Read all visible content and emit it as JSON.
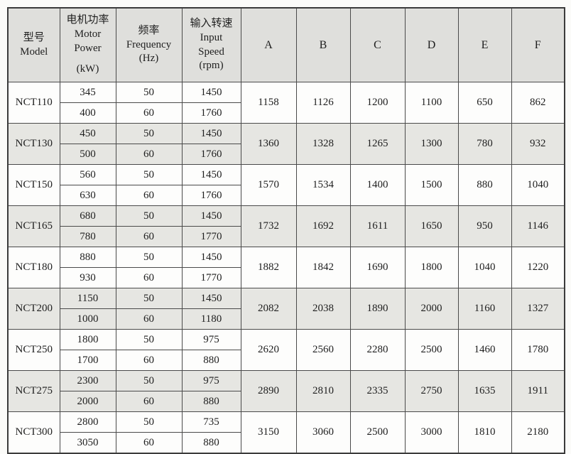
{
  "colors": {
    "page_background": "#fbfbf9",
    "header_background": "#dfdfdc",
    "shaded_row_background": "#e6e6e2",
    "border": "#4a4a4a",
    "text": "#1e1e1e"
  },
  "table": {
    "header": {
      "model_cn": "型号",
      "model_en": "Model",
      "power_cn": "电机功率",
      "power_en_1": "Motor",
      "power_en_2": "Power",
      "power_unit": "(kW)",
      "freq_cn": "频率",
      "freq_en": "Frequency",
      "freq_unit": "(Hz)",
      "speed_cn": "输入转速",
      "speed_en_1": "Input",
      "speed_en_2": "Speed",
      "speed_unit": "(rpm)",
      "col_a": "A",
      "col_b": "B",
      "col_c": "C",
      "col_d": "D",
      "col_e": "E",
      "col_f": "F"
    },
    "groups": [
      {
        "model": "NCT110",
        "variants": [
          {
            "power": "345",
            "freq": "50",
            "speed": "1450"
          },
          {
            "power": "400",
            "freq": "60",
            "speed": "1760"
          }
        ],
        "dims": [
          "1158",
          "1126",
          "1200",
          "1100",
          "650",
          "862"
        ]
      },
      {
        "model": "NCT130",
        "variants": [
          {
            "power": "450",
            "freq": "50",
            "speed": "1450"
          },
          {
            "power": "500",
            "freq": "60",
            "speed": "1760"
          }
        ],
        "dims": [
          "1360",
          "1328",
          "1265",
          "1300",
          "780",
          "932"
        ]
      },
      {
        "model": "NCT150",
        "variants": [
          {
            "power": "560",
            "freq": "50",
            "speed": "1450"
          },
          {
            "power": "630",
            "freq": "60",
            "speed": "1760"
          }
        ],
        "dims": [
          "1570",
          "1534",
          "1400",
          "1500",
          "880",
          "1040"
        ]
      },
      {
        "model": "NCT165",
        "variants": [
          {
            "power": "680",
            "freq": "50",
            "speed": "1450"
          },
          {
            "power": "780",
            "freq": "60",
            "speed": "1770"
          }
        ],
        "dims": [
          "1732",
          "1692",
          "1611",
          "1650",
          "950",
          "1146"
        ]
      },
      {
        "model": "NCT180",
        "variants": [
          {
            "power": "880",
            "freq": "50",
            "speed": "1450"
          },
          {
            "power": "930",
            "freq": "60",
            "speed": "1770"
          }
        ],
        "dims": [
          "1882",
          "1842",
          "1690",
          "1800",
          "1040",
          "1220"
        ]
      },
      {
        "model": "NCT200",
        "variants": [
          {
            "power": "1150",
            "freq": "50",
            "speed": "1450"
          },
          {
            "power": "1000",
            "freq": "60",
            "speed": "1180"
          }
        ],
        "dims": [
          "2082",
          "2038",
          "1890",
          "2000",
          "1160",
          "1327"
        ]
      },
      {
        "model": "NCT250",
        "variants": [
          {
            "power": "1800",
            "freq": "50",
            "speed": "975"
          },
          {
            "power": "1700",
            "freq": "60",
            "speed": "880"
          }
        ],
        "dims": [
          "2620",
          "2560",
          "2280",
          "2500",
          "1460",
          "1780"
        ]
      },
      {
        "model": "NCT275",
        "variants": [
          {
            "power": "2300",
            "freq": "50",
            "speed": "975"
          },
          {
            "power": "2000",
            "freq": "60",
            "speed": "880"
          }
        ],
        "dims": [
          "2890",
          "2810",
          "2335",
          "2750",
          "1635",
          "1911"
        ]
      },
      {
        "model": "NCT300",
        "variants": [
          {
            "power": "2800",
            "freq": "50",
            "speed": "735"
          },
          {
            "power": "3050",
            "freq": "60",
            "speed": "880"
          }
        ],
        "dims": [
          "3150",
          "3060",
          "2500",
          "3000",
          "1810",
          "2180"
        ]
      }
    ]
  }
}
